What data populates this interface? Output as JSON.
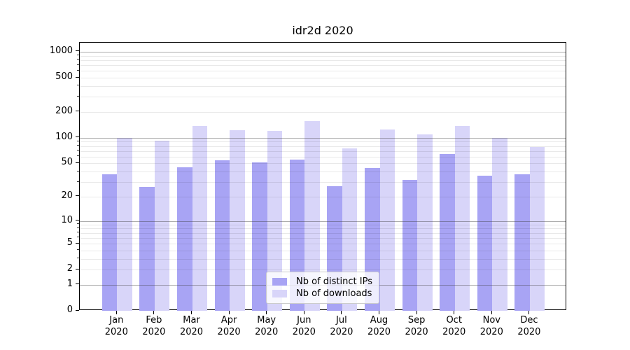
{
  "figure": {
    "background": "#ffffff"
  },
  "chart_data": {
    "type": "bar",
    "title": "idr2d 2020",
    "categories": [
      "Jan",
      "Feb",
      "Mar",
      "Apr",
      "May",
      "Jun",
      "Jul",
      "Aug",
      "Sep",
      "Oct",
      "Nov",
      "Dec"
    ],
    "category_year": "2020",
    "series": [
      {
        "name": "Nb of distinct IPs",
        "color": "#a8a4f4",
        "values": [
          37,
          26,
          45,
          54,
          51,
          55,
          27,
          44,
          32,
          65,
          36,
          37
        ]
      },
      {
        "name": "Nb of downloads",
        "color": "#d8d5f9",
        "values": [
          100,
          92,
          138,
          122,
          120,
          157,
          75,
          125,
          110,
          138,
          100,
          78
        ]
      }
    ],
    "y_axis": {
      "scale": "log1p",
      "tick_values": [
        0,
        1,
        2,
        5,
        10,
        20,
        50,
        100,
        200,
        500,
        1000
      ],
      "major_grid_values": [
        1,
        10,
        100,
        1000
      ],
      "minor_grid_values": [
        2,
        3,
        4,
        5,
        6,
        7,
        8,
        9,
        20,
        30,
        40,
        50,
        60,
        70,
        80,
        90,
        200,
        300,
        400,
        500,
        600,
        700,
        800,
        900
      ],
      "top_value": 1280
    },
    "legend_position": "lower center",
    "grid": true
  },
  "colors": {
    "bar_distinct_ips": "#a8a4f4",
    "bar_downloads": "#d8d5f9",
    "major_grid": "#b3b3b3",
    "minor_grid": "#e9e9e9",
    "spine": "#000000",
    "legend_border": "#cccccc"
  }
}
